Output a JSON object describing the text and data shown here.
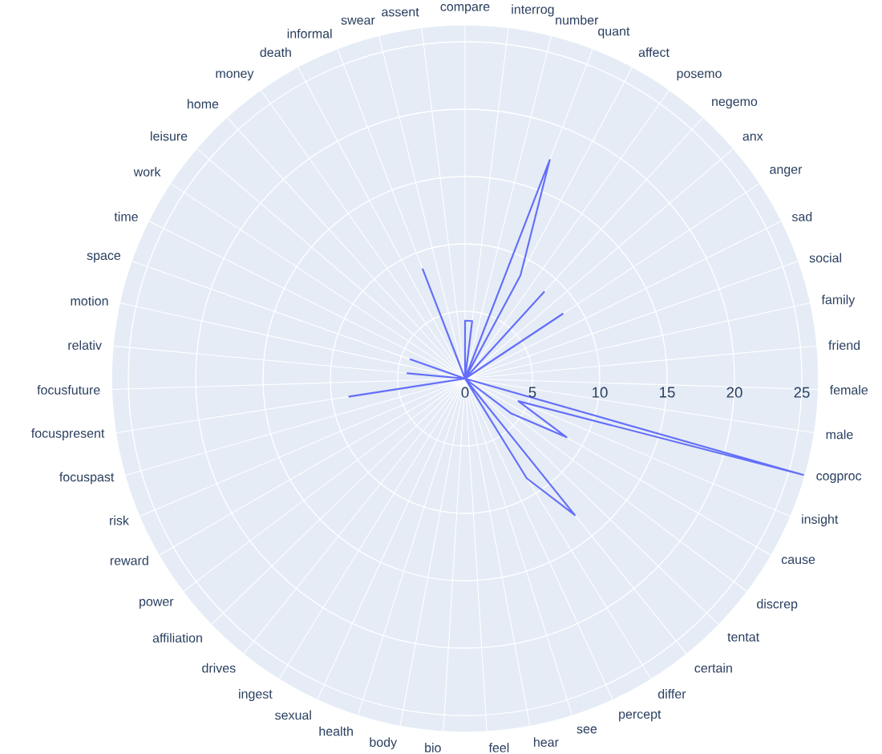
{
  "chart_data": {
    "type": "radar",
    "categories": [
      "compare",
      "interrog",
      "number",
      "quant",
      "affect",
      "posemo",
      "negemo",
      "anx",
      "anger",
      "sad",
      "social",
      "family",
      "friend",
      "female",
      "male",
      "cogproc",
      "insight",
      "cause",
      "discrep",
      "tentat",
      "certain",
      "differ",
      "percept",
      "see",
      "hear",
      "feel",
      "bio",
      "body",
      "health",
      "sexual",
      "ingest",
      "drives",
      "affiliation",
      "power",
      "reward",
      "risk",
      "focuspast",
      "focuspresent",
      "focusfuture",
      "relativ",
      "motion",
      "space",
      "time",
      "work",
      "leisure",
      "home",
      "money",
      "death",
      "informal",
      "swear",
      "assent"
    ],
    "series": [
      {
        "color": "#636efa",
        "values": [
          4.3,
          4.3,
          0,
          17.4,
          8.7,
          0,
          8.7,
          0,
          8.7,
          0,
          0,
          0,
          0,
          0,
          0,
          26.1,
          4.3,
          8.7,
          4.3,
          0,
          13,
          8.7,
          0,
          0,
          0,
          0,
          0,
          0,
          0,
          0,
          0,
          0,
          0,
          0,
          0,
          0,
          0,
          8.7,
          0,
          4.3,
          0,
          4.3,
          0,
          0,
          0,
          0,
          0,
          0,
          8.7,
          0,
          0
        ]
      }
    ],
    "ylim": [
      0,
      26.2
    ],
    "yticks": [
      0,
      5,
      10,
      15,
      20,
      25
    ],
    "grid": true
  }
}
